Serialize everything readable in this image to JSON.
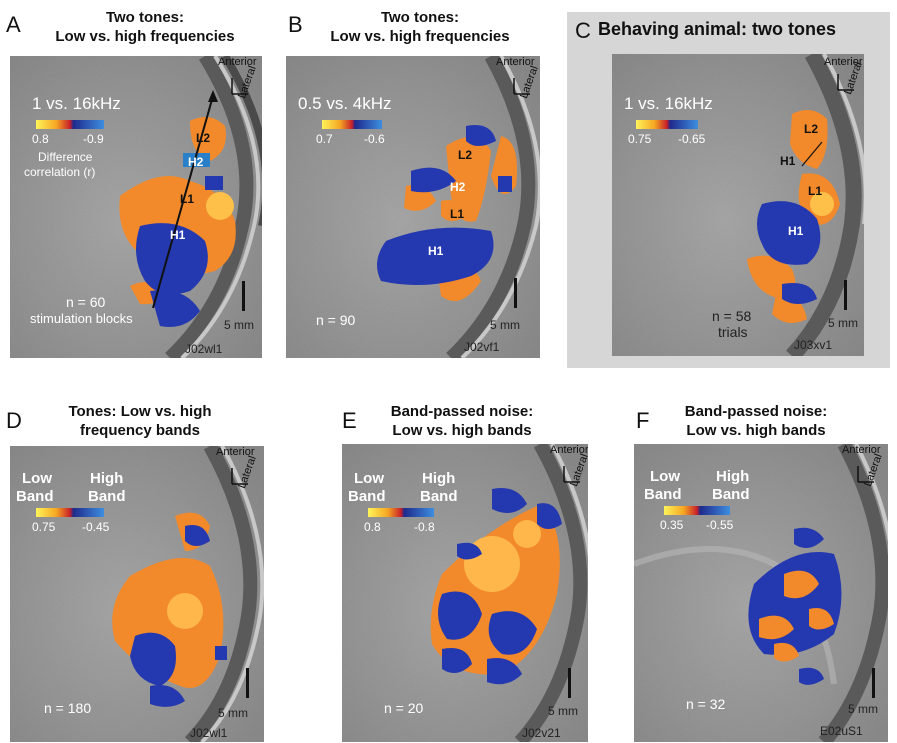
{
  "panels": {
    "A": {
      "letter": "A",
      "title_line1": "Two tones:",
      "title_line2": "Low vs. high frequencies",
      "legend": "1 vs. 16kHz",
      "cmin": "0.8",
      "cmax": "-0.9",
      "caption_line1": "Difference",
      "caption_line2": "correlation (r)",
      "L2": "L2",
      "H2": "H2",
      "L1": "L1",
      "H1": "H1",
      "n_text": "n = 60",
      "n_sub": "stimulation blocks",
      "scale": "5 mm",
      "id": "J02wl1",
      "anterior": "Anterior",
      "lateral": "Lateral"
    },
    "B": {
      "letter": "B",
      "title_line1": "Two tones:",
      "title_line2": "Low vs. high frequencies",
      "legend": "0.5 vs. 4kHz",
      "cmin": "0.7",
      "cmax": "-0.6",
      "L2": "L2",
      "H2": "H2",
      "L1": "L1",
      "H1": "H1",
      "n_text": "n = 90",
      "scale": "5 mm",
      "id": "J02vf1",
      "anterior": "Anterior",
      "lateral": "Lateral"
    },
    "C": {
      "letter": "C",
      "title": "Behaving animal: two tones",
      "legend": "1 vs. 16kHz",
      "cmin": "0.75",
      "cmax": "-0.65",
      "L2": "L2",
      "H1a": "H1",
      "L1": "L1",
      "H1": "H1",
      "n_text": "n = 58",
      "n_sub": "trials",
      "scale": "5 mm",
      "id": "J03xv1",
      "anterior": "Anterior",
      "lateral": "Lateral"
    },
    "D": {
      "letter": "D",
      "title_line1": "Tones:  Low vs. high",
      "title_line2": "frequency bands",
      "low1": "Low",
      "low2": "Band",
      "high1": "High",
      "high2": "Band",
      "cmin": "0.75",
      "cmax": "-0.45",
      "n_text": "n = 180",
      "scale": "5 mm",
      "id": "J02wl1",
      "anterior": "Anterior",
      "lateral": "Lateral"
    },
    "E": {
      "letter": "E",
      "title_line1": "Band-passed noise:",
      "title_line2": "Low vs. high bands",
      "low1": "Low",
      "low2": "Band",
      "high1": "High",
      "high2": "Band",
      "cmin": "0.8",
      "cmax": "-0.8",
      "n_text": "n = 20",
      "scale": "5 mm",
      "id": "J02v21",
      "anterior": "Anterior",
      "lateral": "Lateral"
    },
    "F": {
      "letter": "F",
      "title_line1": "Band-passed noise:",
      "title_line2": "Low vs. high bands",
      "low1": "Low",
      "low2": "Band",
      "high1": "High",
      "high2": "Band",
      "cmin": "0.35",
      "cmax": "-0.55",
      "n_text": "n = 32",
      "scale": "5 mm",
      "id": "E02uS1",
      "anterior": "Anterior",
      "lateral": "Lateral"
    }
  },
  "colors": {
    "hot": "#f28a2b",
    "hot_light": "#ffc04a",
    "cold": "#2438b0",
    "cold_light": "#3a7fd6",
    "mri_bg": "#9a9a9a"
  }
}
